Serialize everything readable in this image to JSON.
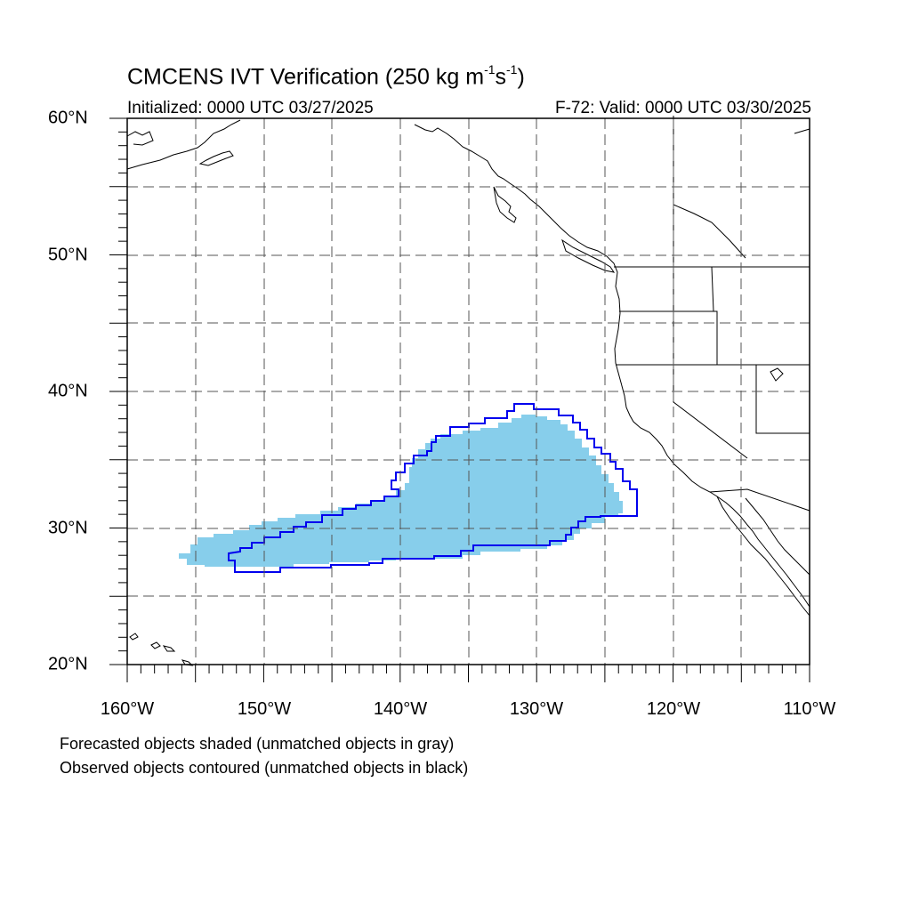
{
  "title": {
    "main": "CMCENS IVT Verification (250 kg m",
    "sup1": "-1",
    "mid": "s",
    "sup2": "-1",
    "end": ")"
  },
  "initialized": "Initialized: 0000 UTC 03/27/2025",
  "valid": "F-72: Valid: 0000 UTC 03/30/2025",
  "axes": {
    "lon_range": [
      -160,
      -110
    ],
    "lat_range": [
      20,
      60
    ],
    "lat_labels": [
      "60°N",
      "50°N",
      "40°N",
      "30°N",
      "20°N"
    ],
    "lon_labels": [
      "160°W",
      "150°W",
      "140°W",
      "130°W",
      "120°W",
      "110°W"
    ],
    "grid": "dashed every 5°"
  },
  "legend": {
    "forecast_note": "Forecasted objects shaded (unmatched objects in gray)",
    "observed_note": "Observed objects contoured (unmatched objects in black)"
  },
  "colors": {
    "forecast_fill": "#87ceeb",
    "observed_contour": "#0000ee",
    "coastline": "#000000",
    "grid": "#555555"
  }
}
